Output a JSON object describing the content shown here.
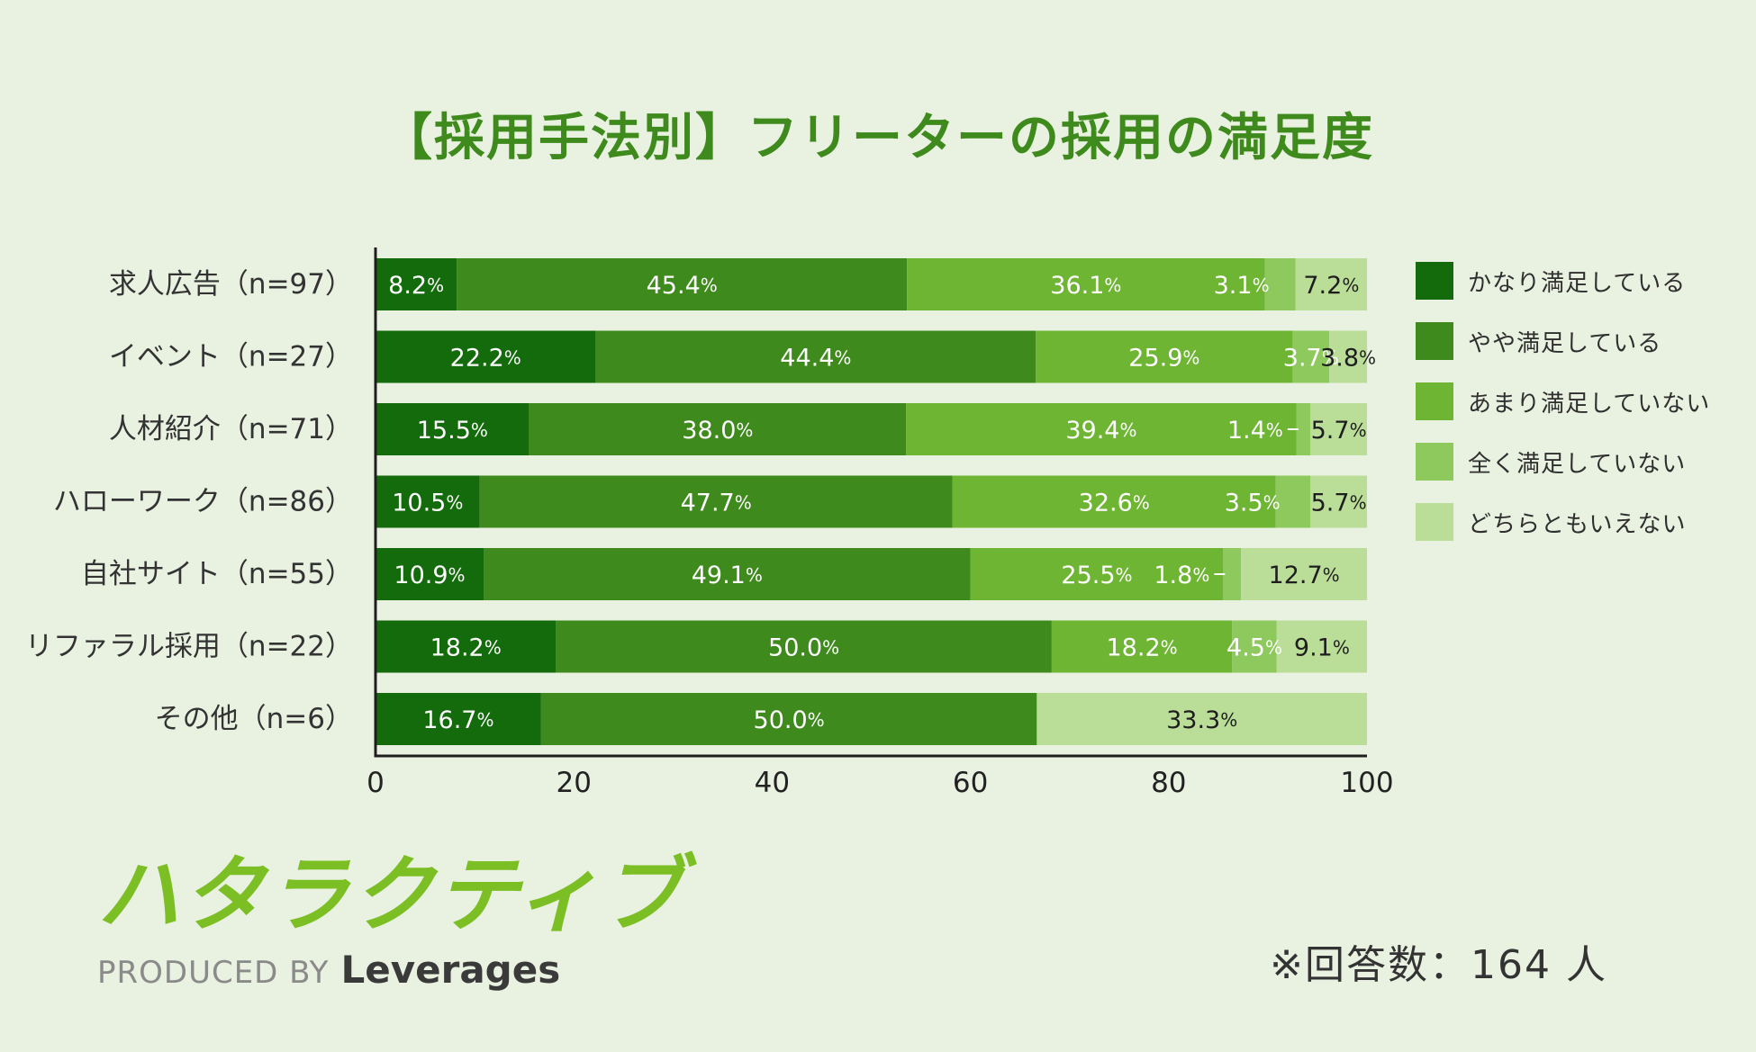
{
  "chart_data": {
    "type": "bar",
    "orientation": "horizontal",
    "stacked": true,
    "title": "【採用手法別】フリーターの採用の満足度",
    "categories": [
      "求人広告（n=97）",
      "イベント（n=27）",
      "人材紹介（n=71）",
      "ハローワーク（n=86）",
      "自社サイト（n=55）",
      "リファラル採用（n=22）",
      "その他（n=6）"
    ],
    "series": [
      {
        "name": "かなり満足している",
        "color": "#146b0c",
        "values": [
          8.2,
          22.2,
          15.5,
          10.5,
          10.9,
          18.2,
          16.7
        ]
      },
      {
        "name": "やや満足している",
        "color": "#3e8a1c",
        "values": [
          45.4,
          44.4,
          38.0,
          47.7,
          49.1,
          50.0,
          50.0
        ]
      },
      {
        "name": "あまり満足していない",
        "color": "#6fb534",
        "values": [
          36.1,
          25.9,
          39.4,
          32.6,
          25.5,
          18.2,
          0
        ]
      },
      {
        "name": "全く満足していない",
        "color": "#8dc95c",
        "values": [
          3.1,
          3.7,
          1.4,
          3.5,
          1.8,
          4.5,
          0
        ]
      },
      {
        "name": "どちらともいえない",
        "color": "#badd98",
        "values": [
          7.2,
          3.8,
          5.7,
          5.7,
          12.7,
          9.1,
          33.3
        ]
      }
    ],
    "xlim": [
      0,
      100
    ],
    "xticks": [
      0,
      20,
      40,
      60,
      80,
      100
    ],
    "value_suffix": "%",
    "legend_position": "right"
  },
  "logo": {
    "name": "ハタラクティブ",
    "produced_by": "PRODUCED BY",
    "company": "Leverages"
  },
  "footnote": "※回答数：164 人"
}
